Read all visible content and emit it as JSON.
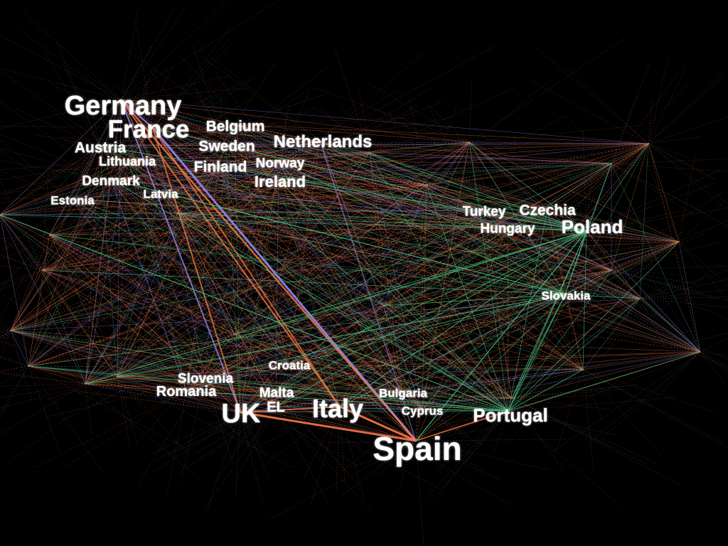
{
  "colors": {
    "background": "#000000",
    "edge_orange": "#ff7a45",
    "edge_lavender": "#9b8cff",
    "edge_green": "#3fbf7f",
    "label": "#ffffff"
  },
  "nodes": [
    {
      "id": "germany",
      "label": "Germany"
    },
    {
      "id": "france",
      "label": "France"
    },
    {
      "id": "belgium",
      "label": "Belgium"
    },
    {
      "id": "netherlands",
      "label": "Netherlands"
    },
    {
      "id": "austria",
      "label": "Austria"
    },
    {
      "id": "sweden",
      "label": "Sweden"
    },
    {
      "id": "lithuania",
      "label": "Lithuania"
    },
    {
      "id": "finland",
      "label": "Finland"
    },
    {
      "id": "norway",
      "label": "Norway"
    },
    {
      "id": "denmark",
      "label": "Denmark"
    },
    {
      "id": "ireland",
      "label": "Ireland"
    },
    {
      "id": "latvia",
      "label": "Latvia"
    },
    {
      "id": "estonia",
      "label": "Estonia"
    },
    {
      "id": "turkey",
      "label": "Turkey"
    },
    {
      "id": "czechia",
      "label": "Czechia"
    },
    {
      "id": "hungary",
      "label": "Hungary"
    },
    {
      "id": "poland",
      "label": "Poland"
    },
    {
      "id": "slovakia",
      "label": "Slovakia"
    },
    {
      "id": "croatia",
      "label": "Croatia"
    },
    {
      "id": "slovenia",
      "label": "Slovenia"
    },
    {
      "id": "romania",
      "label": "Romania"
    },
    {
      "id": "malta",
      "label": "Malta"
    },
    {
      "id": "bulgaria",
      "label": "Bulgaria"
    },
    {
      "id": "uk",
      "label": "UK"
    },
    {
      "id": "el",
      "label": "EL"
    },
    {
      "id": "italy",
      "label": "Italy"
    },
    {
      "id": "cyprus",
      "label": "Cyprus"
    },
    {
      "id": "portugal",
      "label": "Portugal"
    },
    {
      "id": "spain",
      "label": "Spain"
    }
  ]
}
